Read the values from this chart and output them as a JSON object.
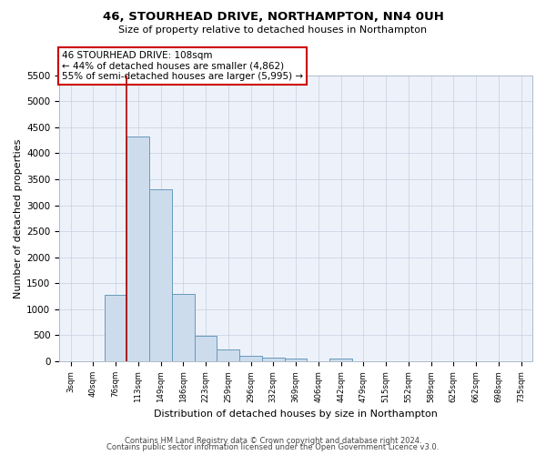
{
  "title": "46, STOURHEAD DRIVE, NORTHAMPTON, NN4 0UH",
  "subtitle": "Size of property relative to detached houses in Northampton",
  "xlabel": "Distribution of detached houses by size in Northampton",
  "ylabel": "Number of detached properties",
  "footnote1": "Contains HM Land Registry data © Crown copyright and database right 2024.",
  "footnote2": "Contains public sector information licensed under the Open Government Licence v3.0.",
  "annotation_line1": "46 STOURHEAD DRIVE: 108sqm",
  "annotation_line2": "← 44% of detached houses are smaller (4,862)",
  "annotation_line3": "55% of semi-detached houses are larger (5,995) →",
  "bin_labels": [
    "3sqm",
    "40sqm",
    "76sqm",
    "113sqm",
    "149sqm",
    "186sqm",
    "223sqm",
    "259sqm",
    "296sqm",
    "332sqm",
    "369sqm",
    "406sqm",
    "442sqm",
    "479sqm",
    "515sqm",
    "552sqm",
    "589sqm",
    "625sqm",
    "662sqm",
    "698sqm",
    "735sqm"
  ],
  "bar_values": [
    0,
    0,
    1270,
    4330,
    3300,
    1290,
    490,
    220,
    100,
    75,
    55,
    0,
    55,
    0,
    0,
    0,
    0,
    0,
    0,
    0,
    0
  ],
  "bar_color": "#ccdcec",
  "bar_edge_color": "#6899bb",
  "red_line_x": 2.5,
  "ylim": [
    0,
    5500
  ],
  "yticks": [
    0,
    500,
    1000,
    1500,
    2000,
    2500,
    3000,
    3500,
    4000,
    4500,
    5000,
    5500
  ],
  "background_color": "#edf2fa"
}
